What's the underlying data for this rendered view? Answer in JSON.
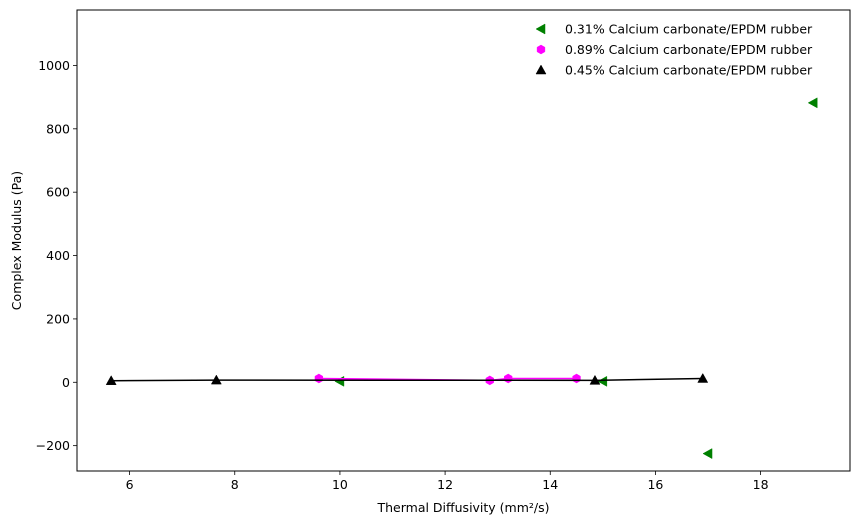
{
  "chart_data": {
    "type": "scatter",
    "title": "",
    "xlabel": "Thermal Diffusivity (mm²/s)",
    "ylabel": "Complex Modulus (Pa)",
    "xlim": [
      5.0,
      19.7
    ],
    "ylim": [
      -280,
      1175
    ],
    "xticks": [
      6,
      8,
      10,
      12,
      14,
      16,
      18
    ],
    "yticks": [
      -200,
      0,
      200,
      400,
      600,
      800,
      1000
    ],
    "ytick_labels": [
      "−200",
      "0",
      "200",
      "400",
      "600",
      "800",
      "1000"
    ],
    "grid": false,
    "legend_position": "top-right",
    "series": [
      {
        "name": "0.31% Calcium carbonate/EPDM rubber",
        "marker": "triangle-left",
        "color": "#008000",
        "line": false,
        "x": [
          10.0,
          15.0,
          17.0,
          19.0
        ],
        "y": [
          3,
          3,
          -225,
          882
        ]
      },
      {
        "name": "0.89% Calcium carbonate/EPDM rubber",
        "marker": "hexagon",
        "color": "#ff00ff",
        "line": true,
        "x": [
          9.6,
          12.85,
          13.2,
          14.5
        ],
        "y": [
          12,
          6,
          12,
          12
        ]
      },
      {
        "name": "0.45% Calcium carbonate/EPDM rubber",
        "marker": "triangle-up",
        "color": "#000000",
        "line": true,
        "x": [
          5.65,
          7.65,
          14.85,
          16.9
        ],
        "y": [
          5,
          7,
          6,
          12
        ]
      }
    ]
  }
}
